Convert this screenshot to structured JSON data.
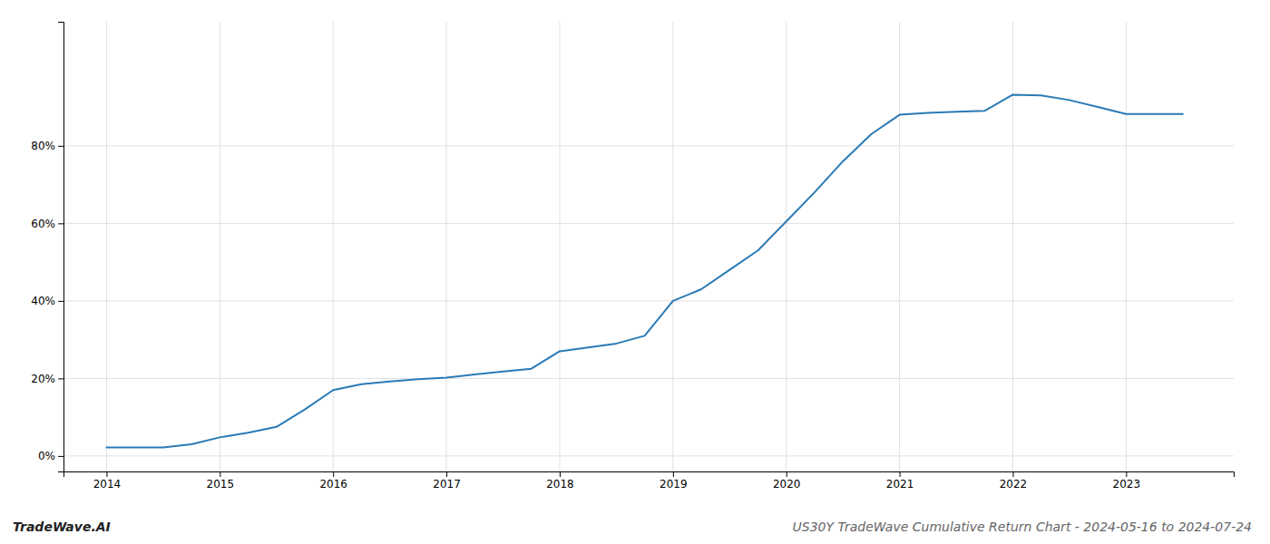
{
  "chart_data": {
    "type": "line",
    "title": "US30Y TradeWave Cumulative Return Chart - 2024-05-16 to 2024-07-24",
    "annotations": [
      "TradeWave.AI"
    ],
    "x": [
      2014.0,
      2014.25,
      2014.5,
      2014.75,
      2015.0,
      2015.25,
      2015.5,
      2015.75,
      2016.0,
      2016.25,
      2016.5,
      2016.75,
      2017.0,
      2017.25,
      2017.5,
      2017.75,
      2018.0,
      2018.25,
      2018.5,
      2018.75,
      2019.0,
      2019.25,
      2019.5,
      2019.75,
      2020.0,
      2020.25,
      2020.5,
      2020.75,
      2021.0,
      2021.25,
      2021.5,
      2021.75,
      2022.0,
      2022.25,
      2022.5,
      2022.75,
      2023.0,
      2023.25,
      2023.5
    ],
    "values": [
      0.022,
      0.022,
      0.022,
      0.03,
      0.048,
      0.06,
      0.075,
      0.12,
      0.17,
      0.185,
      0.192,
      0.198,
      0.202,
      0.21,
      0.218,
      0.225,
      0.27,
      0.28,
      0.29,
      0.31,
      0.4,
      0.43,
      0.48,
      0.53,
      0.605,
      0.68,
      0.76,
      0.83,
      0.88,
      0.885,
      0.888,
      0.89,
      0.932,
      0.93,
      0.918,
      0.9,
      0.882,
      0.882,
      0.882
    ],
    "color": "#2a7ab5",
    "xlim": [
      2013.62,
      2023.95
    ],
    "xticks": [
      2014,
      2015,
      2016,
      2017,
      2018,
      2019,
      2020,
      2021,
      2022,
      2023
    ],
    "ylim": [
      -0.04,
      1.12
    ],
    "yticks": [
      {
        "value": 0.0,
        "label": "0%"
      },
      {
        "value": 0.2,
        "label": "20%"
      },
      {
        "value": 0.4,
        "label": "40%"
      },
      {
        "value": 0.6,
        "label": "60%"
      },
      {
        "value": 0.8,
        "label": "80%"
      }
    ],
    "grid": true
  }
}
